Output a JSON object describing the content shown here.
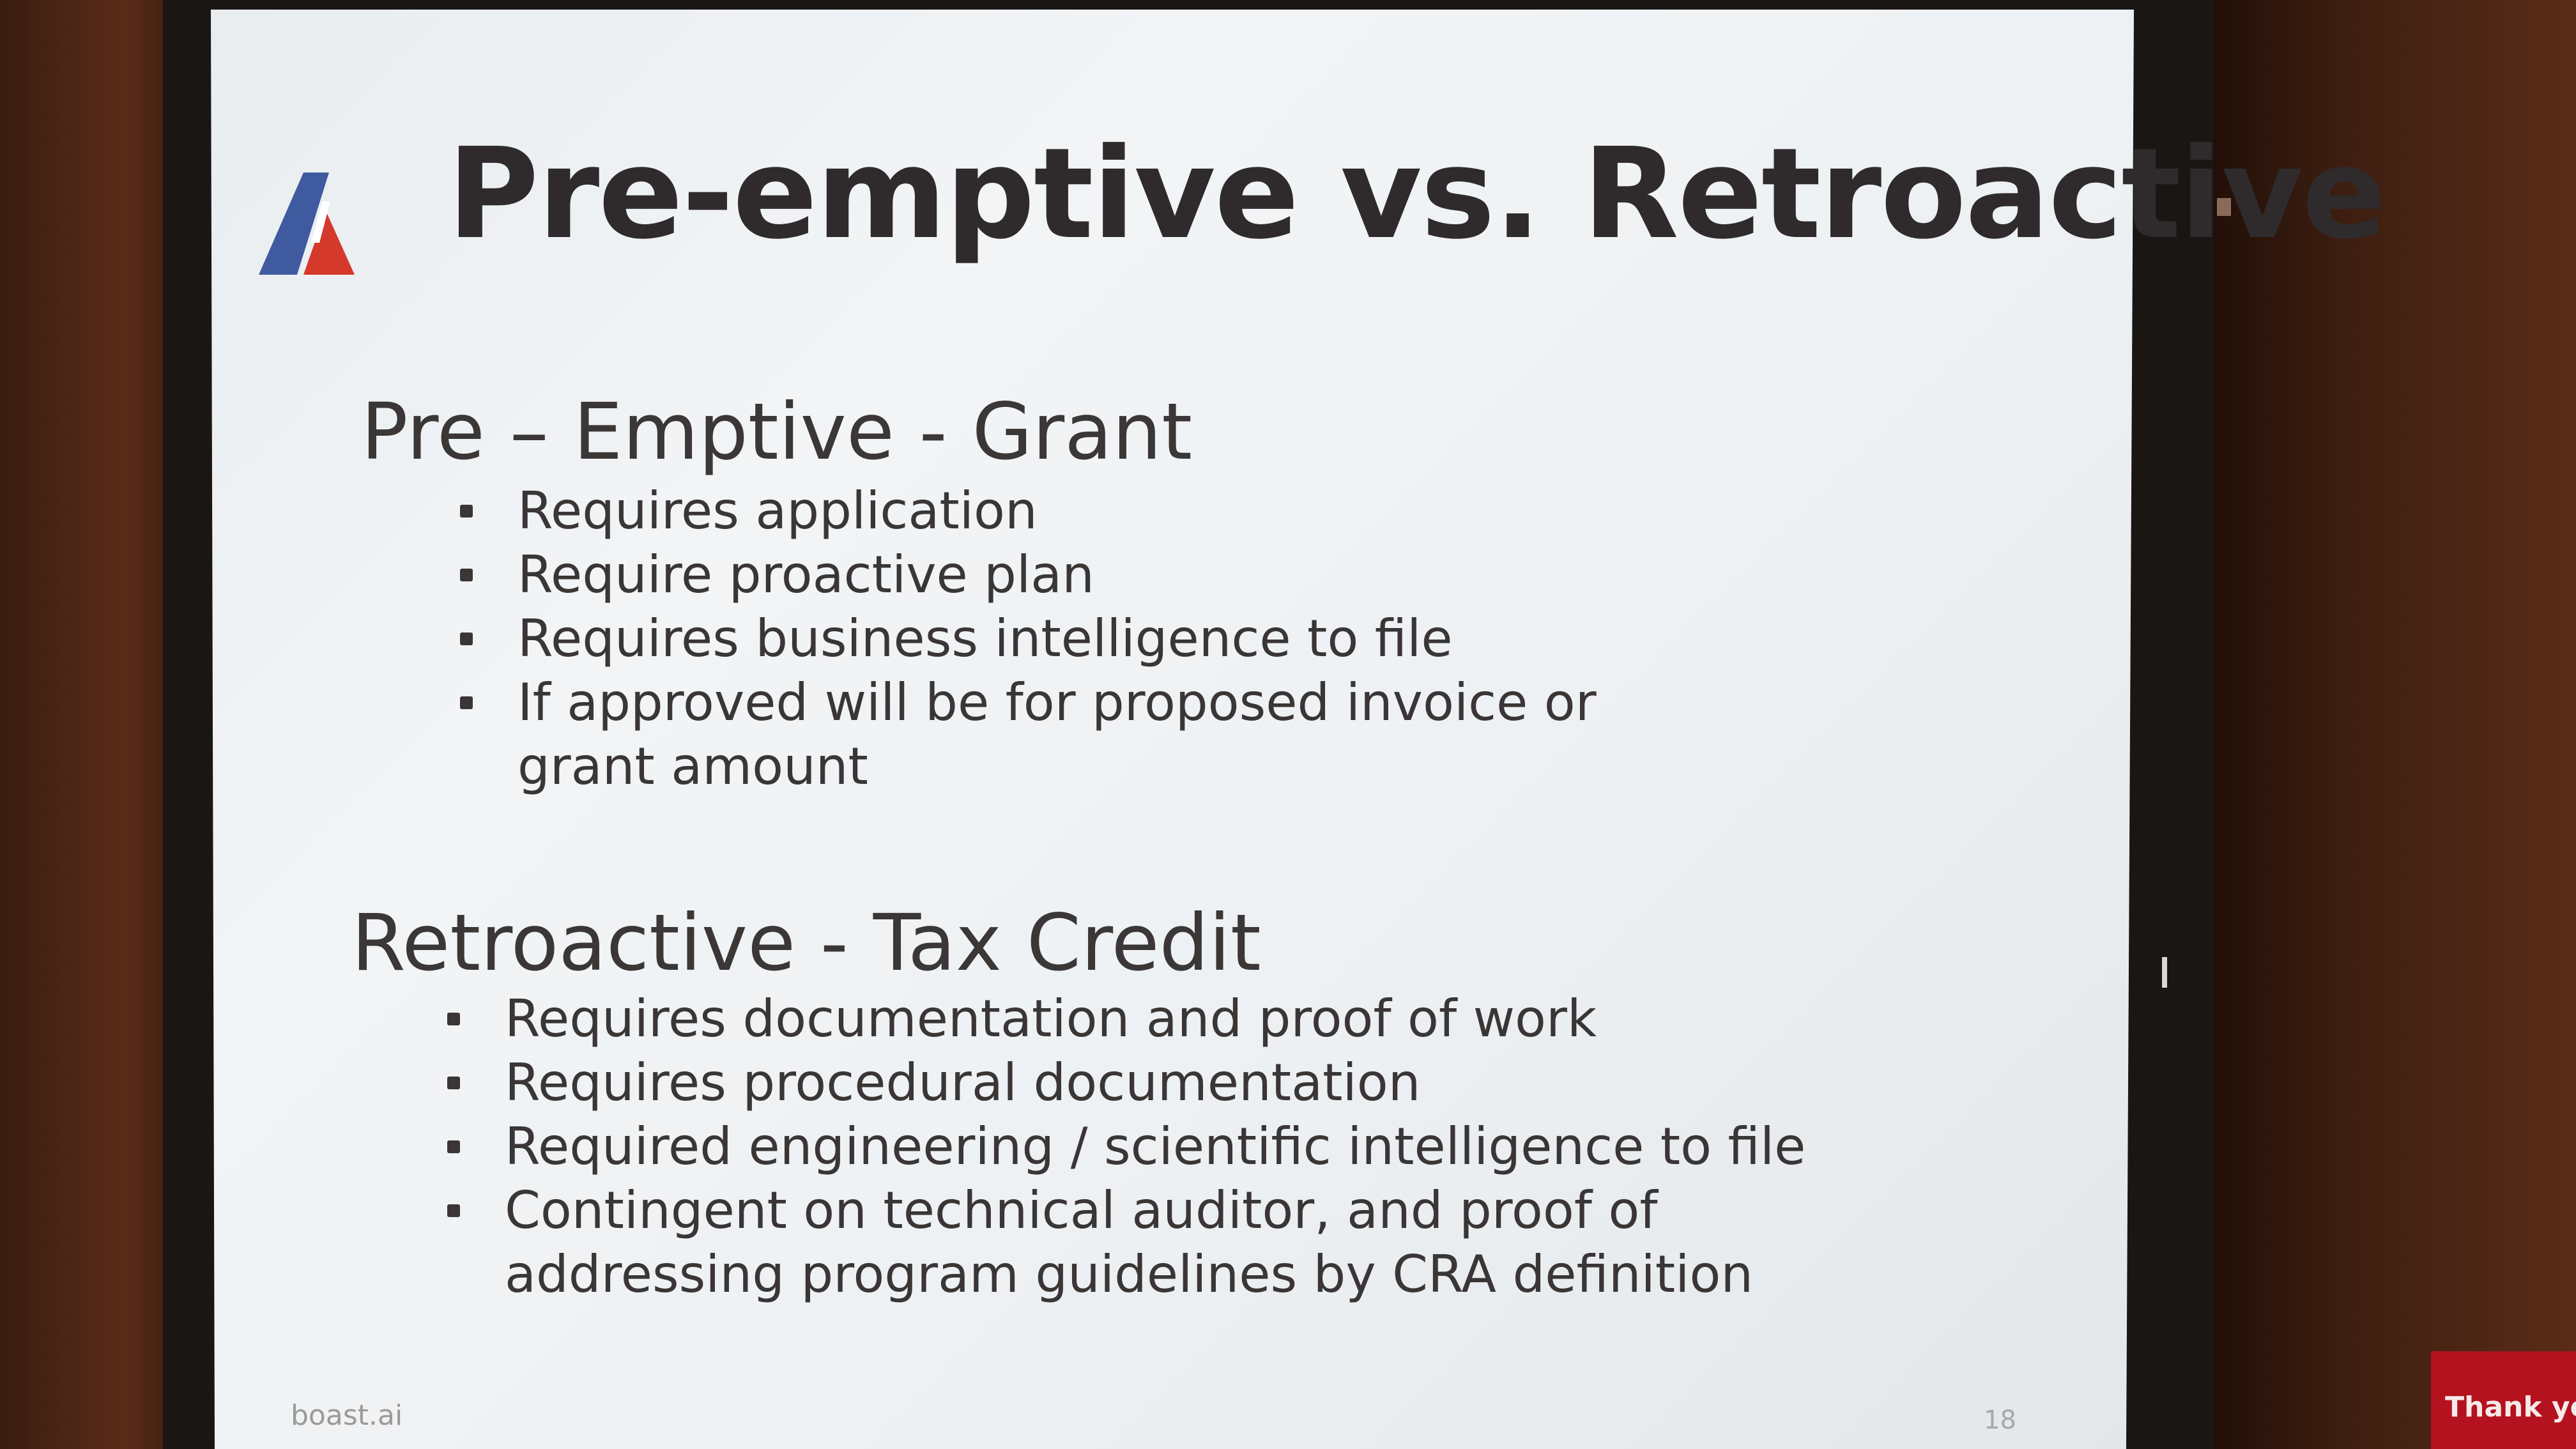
{
  "slide": {
    "title": "Pre-emptive vs. Retroactive",
    "logo_icon": "boast-logo-icon",
    "sections": [
      {
        "heading": "Pre – Emptive - Grant",
        "bullets": [
          "Requires application",
          "Require proactive plan",
          "Requires business intelligence to file",
          "If approved will be for proposed invoice or grant amount"
        ]
      },
      {
        "heading": "Retroactive - Tax Credit",
        "bullets": [
          "Requires documentation and proof of work",
          "Requires procedural documentation",
          "Required engineering / scientific intelligence to file",
          "Contingent on technical auditor, and proof of addressing program guidelines by CRA definition"
        ]
      }
    ],
    "footer_brand": "boast.ai",
    "page_number": "18"
  },
  "side_tag": {
    "text": "Thank yo"
  },
  "colors": {
    "logo_blue": "#3f5a9e",
    "logo_red": "#d5392b",
    "title_text": "#2f2b2c",
    "tag_red": "#b3121e"
  }
}
